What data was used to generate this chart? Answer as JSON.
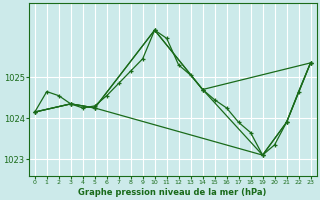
{
  "title": "Graphe pression niveau de la mer (hPa)",
  "bg_color": "#cceaea",
  "grid_color": "#ffffff",
  "line_color": "#1a6b1a",
  "xlim": [
    -0.5,
    23.5
  ],
  "ylim": [
    1022.6,
    1026.8
  ],
  "yticks": [
    1023,
    1024,
    1025
  ],
  "xticks": [
    0,
    1,
    2,
    3,
    4,
    5,
    6,
    7,
    8,
    9,
    10,
    11,
    12,
    13,
    14,
    15,
    16,
    17,
    18,
    19,
    20,
    21,
    22,
    23
  ],
  "series1_x": [
    0,
    1,
    2,
    3,
    4,
    5,
    6,
    7,
    8,
    9,
    10,
    11,
    12,
    13,
    14,
    15,
    16,
    17,
    18,
    19,
    20,
    21,
    22,
    23
  ],
  "series1_y": [
    1024.15,
    1024.65,
    1024.55,
    1024.35,
    1024.25,
    1024.3,
    1024.55,
    1024.85,
    1025.15,
    1025.45,
    1026.15,
    1025.95,
    1025.3,
    1025.05,
    1024.7,
    1024.45,
    1024.25,
    1023.9,
    1023.65,
    1023.1,
    1023.35,
    1023.9,
    1024.65,
    1025.35
  ],
  "series2_x": [
    0,
    3,
    5,
    10,
    14,
    23
  ],
  "series2_y": [
    1024.15,
    1024.35,
    1024.25,
    1026.15,
    1024.7,
    1025.35
  ],
  "series3_x": [
    0,
    3,
    5,
    10,
    14,
    19,
    21,
    23
  ],
  "series3_y": [
    1024.15,
    1024.35,
    1024.25,
    1026.15,
    1024.7,
    1023.1,
    1023.9,
    1025.35
  ],
  "series4_x": [
    0,
    3,
    5,
    19,
    21,
    23
  ],
  "series4_y": [
    1024.15,
    1024.35,
    1024.25,
    1023.1,
    1023.9,
    1025.35
  ]
}
